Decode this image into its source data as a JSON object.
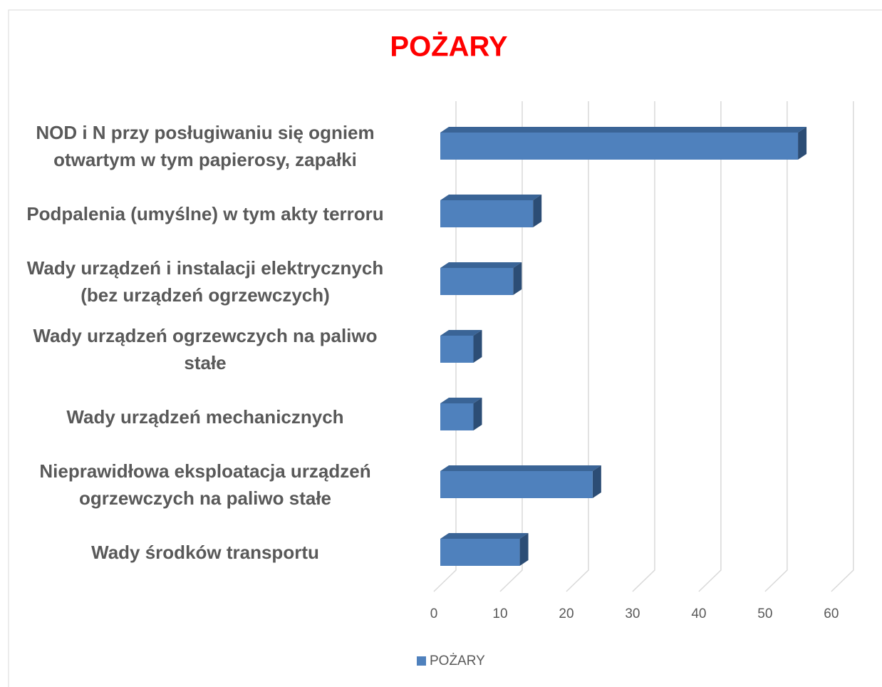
{
  "chart_data": {
    "type": "bar3d_horizontal",
    "title": "POŻARY",
    "categories": [
      "NOD i N przy posługiwaniu się ogniem\notwartym w tym papierosy, zapałki",
      "Podpalenia (umyślne) w tym akty terroru",
      "Wady urządzeń i instalacji elektrycznych\n(bez urządzeń ogrzewczych)",
      "Wady urządzeń ogrzewczych na paliwo\nstałe",
      "Wady urządzeń mechanicznych",
      "Nieprawidłowa eksploatacja urządzeń\nogrzewczych na paliwo stałe",
      "Wady środków transportu"
    ],
    "series": [
      {
        "name": "POŻARY",
        "color": "#4f81bd",
        "values": [
          54,
          14,
          11,
          5,
          5,
          23,
          12
        ]
      }
    ],
    "xlim": [
      0,
      60
    ],
    "xticks": [
      0,
      10,
      20,
      30,
      40,
      50,
      60
    ],
    "grid": true,
    "legend": "bottom"
  }
}
